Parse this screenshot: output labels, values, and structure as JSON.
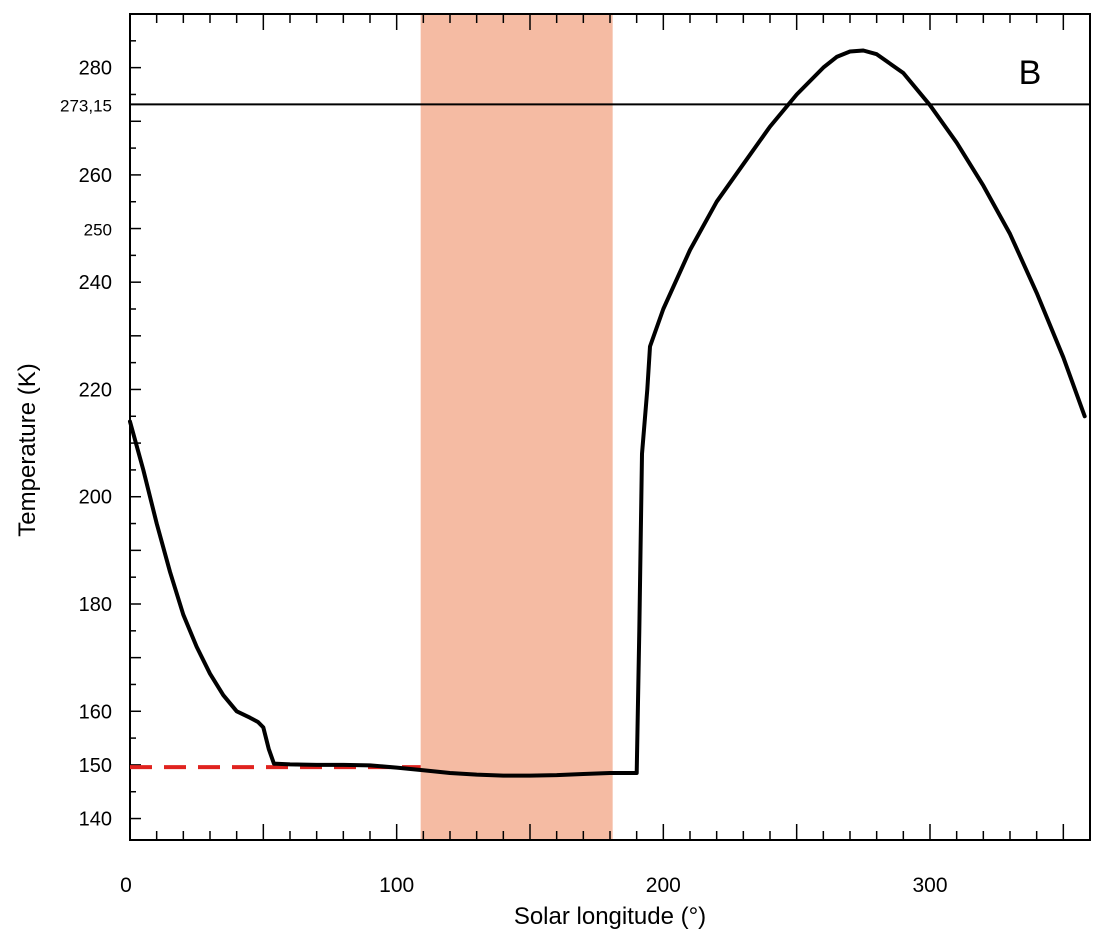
{
  "chart_data": {
    "type": "line",
    "xlabel": "Solar longitude (°)",
    "ylabel": "Temperature  (K)",
    "panel_label": "B",
    "xlim": [
      0,
      360
    ],
    "ylim": [
      136,
      290
    ],
    "x_ticks": [
      {
        "value": 0,
        "label": "0"
      },
      {
        "value": 100,
        "label": "100"
      },
      {
        "value": 200,
        "label": "200"
      },
      {
        "value": 300,
        "label": "300"
      }
    ],
    "y_ticks": [
      {
        "value": 140,
        "label": "140"
      },
      {
        "value": 150,
        "label": "150"
      },
      {
        "value": 160,
        "label": "160"
      },
      {
        "value": 180,
        "label": "180"
      },
      {
        "value": 200,
        "label": "200"
      },
      {
        "value": 220,
        "label": "220"
      },
      {
        "value": 240,
        "label": "240"
      },
      {
        "value": 250,
        "label": "250"
      },
      {
        "value": 260,
        "label": "260"
      },
      {
        "value": 273.15,
        "label": "273,15"
      },
      {
        "value": 280,
        "label": "280"
      }
    ],
    "reference_line": {
      "y": 273.15
    },
    "shaded_region": {
      "x_start": 109,
      "x_end": 181,
      "color": "#f5bba3"
    },
    "series": [
      {
        "style": "solid",
        "color": "#000000",
        "x": [
          0,
          5,
          10,
          15,
          20,
          25,
          30,
          35,
          40,
          45,
          48,
          50,
          52,
          54,
          55,
          60,
          70,
          80,
          90,
          100,
          110,
          120,
          130,
          140,
          150,
          160,
          170,
          180,
          185,
          190,
          191,
          192,
          194,
          195,
          200,
          210,
          220,
          230,
          240,
          250,
          260,
          265,
          270,
          275,
          280,
          290,
          300,
          310,
          320,
          330,
          340,
          350,
          358
        ],
        "y": [
          214,
          205,
          195,
          186,
          178,
          172,
          167,
          163,
          160,
          158.8,
          158,
          157,
          153,
          150.2,
          150.2,
          150.1,
          150,
          150,
          149.9,
          149.5,
          149,
          148.5,
          148.2,
          148,
          148,
          148.1,
          148.3,
          148.5,
          148.5,
          148.5,
          175,
          208,
          220,
          228,
          235,
          246,
          255,
          262,
          269,
          275,
          280,
          282,
          283,
          283.2,
          282.5,
          279,
          273,
          266,
          258,
          249,
          238,
          226,
          215
        ]
      },
      {
        "style": "dashed",
        "color": "#e0231f",
        "x": [
          0,
          109
        ],
        "y": [
          149.6,
          149.6
        ]
      }
    ]
  }
}
